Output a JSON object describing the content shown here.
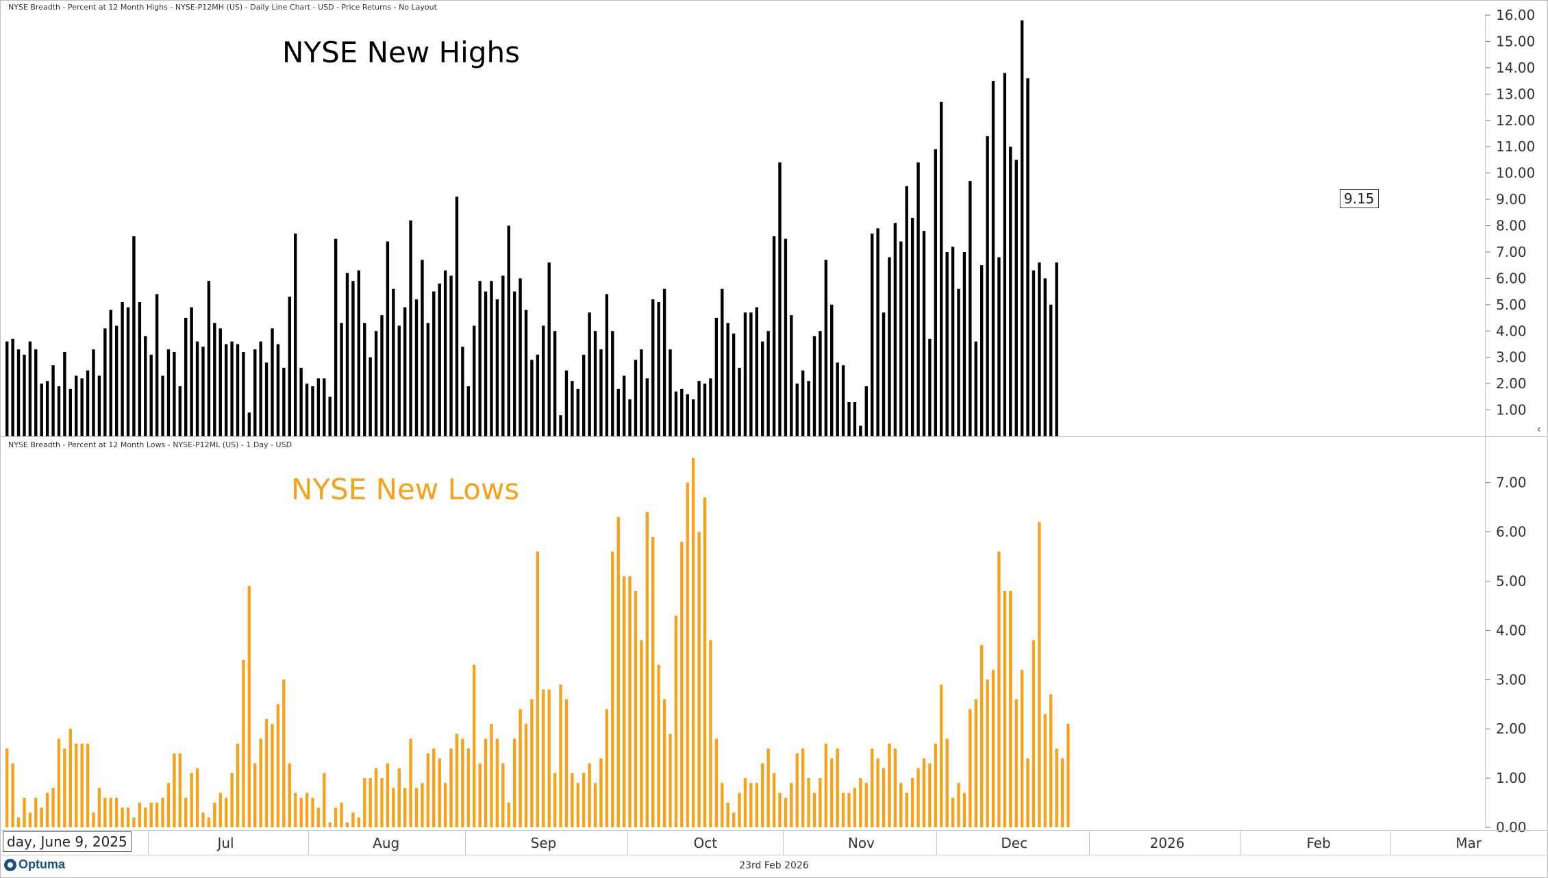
{
  "headers": {
    "top": "NYSE Breadth - Percent at 12 Month Highs - NYSE-P12MH (US) - Daily Line Chart - USD - Price Returns - No Layout",
    "bottom": "NYSE Breadth - Percent at 12 Month Lows - NYSE-P12ML (US) - 1 Day - USD"
  },
  "titles": {
    "highs": "NYSE New Highs",
    "lows": "NYSE New Lows"
  },
  "colors": {
    "highs": "#000000",
    "lows": "#f7a21b"
  },
  "footer": {
    "logo": "Optuma",
    "date": "23rd Feb 2026",
    "start_date": "day, June 9, 2025"
  },
  "price_badge": "9.15",
  "icons": {
    "collapse": "chevron-left-icon",
    "logo": "optuma-logo-icon"
  },
  "chart_data": [
    {
      "type": "bar",
      "name": "NYSE-P12MH",
      "ylim": [
        0,
        16
      ],
      "yticks": [
        "1.00",
        "2.00",
        "3.00",
        "4.00",
        "5.00",
        "6.00",
        "7.00",
        "8.00",
        "9.00",
        "10.00",
        "11.00",
        "12.00",
        "13.00",
        "14.00",
        "15.00",
        "16.00"
      ],
      "values": [
        3.6,
        3.7,
        3.3,
        3.1,
        3.6,
        3.3,
        2.0,
        2.1,
        2.7,
        1.9,
        3.2,
        1.8,
        2.3,
        2.2,
        2.5,
        3.3,
        2.3,
        4.1,
        4.8,
        4.2,
        5.1,
        4.9,
        7.6,
        5.1,
        3.8,
        3.1,
        5.4,
        2.3,
        3.3,
        3.2,
        1.9,
        4.5,
        4.9,
        3.6,
        3.4,
        5.9,
        4.3,
        4.1,
        3.5,
        3.6,
        3.5,
        3.2,
        0.9,
        3.3,
        3.6,
        2.8,
        4.1,
        3.5,
        2.6,
        5.3,
        7.7,
        2.6,
        2.0,
        1.9,
        2.2,
        2.2,
        1.5,
        7.5,
        4.3,
        6.2,
        5.9,
        6.3,
        4.3,
        3.0,
        4.0,
        4.6,
        7.4,
        5.6,
        4.2,
        4.9,
        8.2,
        5.2,
        6.7,
        4.3,
        5.5,
        5.8,
        6.3,
        6.1,
        9.1,
        3.4,
        1.9,
        4.2,
        5.9,
        5.5,
        5.9,
        5.2,
        6.1,
        8.0,
        5.5,
        6.0,
        4.8,
        2.9,
        3.1,
        4.2,
        6.6,
        4.0,
        0.8,
        2.5,
        2.1,
        1.8,
        3.1,
        4.7,
        4.0,
        3.3,
        5.4,
        4.0,
        1.8,
        2.3,
        1.4,
        2.9,
        3.3,
        2.2,
        5.2,
        5.1,
        5.6,
        3.3,
        1.7,
        1.8,
        1.6,
        1.4,
        2.1,
        2.0,
        2.2,
        4.5,
        5.6,
        4.3,
        3.9,
        2.6,
        4.7,
        4.7,
        4.9,
        3.6,
        4.0,
        7.6,
        10.4,
        7.5,
        4.6,
        2.0,
        2.5,
        2.1,
        3.8,
        4.0,
        6.7,
        5.0,
        2.8,
        2.7,
        1.3,
        1.3,
        0.4,
        1.9,
        7.7,
        7.9,
        4.7,
        6.8,
        8.1,
        7.4,
        9.5,
        8.3,
        10.4,
        7.8,
        3.7,
        10.9,
        12.7,
        7.0,
        7.2,
        5.6,
        7.0,
        9.7,
        3.6,
        6.5,
        11.4,
        13.5,
        6.8,
        13.8,
        11.0,
        10.5,
        15.8,
        13.6,
        6.3,
        6.6,
        6.0,
        5.0,
        6.6
      ]
    },
    {
      "type": "bar",
      "name": "NYSE-P12ML",
      "ylim": [
        0,
        7.9
      ],
      "yticks": [
        "0.00",
        "1.00",
        "2.00",
        "3.00",
        "4.00",
        "5.00",
        "6.00",
        "7.00"
      ],
      "values": [
        1.6,
        1.3,
        0.2,
        0.6,
        0.3,
        0.6,
        0.4,
        0.7,
        0.8,
        1.8,
        1.6,
        2.0,
        1.7,
        1.7,
        1.7,
        0.3,
        0.8,
        0.6,
        0.6,
        0.6,
        0.4,
        0.4,
        0.2,
        0.5,
        0.4,
        0.5,
        0.5,
        0.6,
        0.9,
        1.5,
        1.5,
        0.6,
        1.1,
        1.2,
        0.3,
        0.2,
        0.5,
        0.7,
        0.6,
        1.1,
        1.7,
        3.4,
        4.9,
        1.3,
        1.8,
        2.2,
        2.1,
        2.5,
        3.0,
        1.3,
        0.7,
        0.6,
        0.7,
        0.6,
        0.4,
        1.1,
        0.1,
        0.4,
        0.5,
        0.1,
        0.3,
        0.2,
        1.0,
        1.0,
        1.2,
        1.0,
        1.3,
        0.8,
        1.2,
        0.8,
        1.8,
        0.8,
        0.9,
        1.5,
        1.6,
        1.4,
        0.9,
        1.6,
        1.9,
        1.8,
        1.6,
        3.3,
        1.3,
        1.8,
        2.1,
        1.8,
        1.3,
        0.5,
        1.8,
        2.4,
        2.1,
        2.6,
        5.6,
        2.8,
        2.8,
        1.1,
        2.9,
        2.6,
        1.1,
        0.9,
        1.1,
        1.3,
        0.9,
        1.4,
        2.4,
        5.6,
        6.3,
        5.1,
        5.1,
        4.8,
        3.8,
        6.4,
        5.9,
        3.3,
        2.6,
        1.9,
        4.3,
        5.8,
        7.0,
        7.5,
        6.0,
        6.7,
        3.8,
        1.8,
        0.9,
        0.5,
        0.3,
        0.7,
        1.0,
        0.9,
        0.9,
        1.3,
        1.6,
        1.1,
        0.7,
        0.6,
        0.9,
        1.5,
        1.6,
        1.0,
        0.7,
        1.0,
        1.7,
        1.4,
        1.6,
        0.7,
        0.7,
        0.8,
        1.0,
        0.9,
        1.6,
        1.4,
        1.2,
        1.7,
        1.6,
        0.9,
        0.7,
        1.0,
        1.2,
        1.4,
        1.3,
        1.7,
        2.9,
        1.8,
        0.6,
        0.9,
        0.7,
        2.4,
        2.6,
        3.7,
        3.0,
        3.2,
        5.6,
        4.8,
        4.8,
        2.6,
        3.2,
        1.4,
        3.8,
        6.2,
        2.3,
        2.7,
        1.6,
        1.4,
        2.1
      ]
    }
  ],
  "x_axis": {
    "labels": [
      {
        "text": "Jul",
        "pos": 0.152
      },
      {
        "text": "Aug",
        "pos": 0.26
      },
      {
        "text": "Sep",
        "pos": 0.366
      },
      {
        "text": "Oct",
        "pos": 0.475
      },
      {
        "text": "Nov",
        "pos": 0.58
      },
      {
        "text": "Dec",
        "pos": 0.683
      },
      {
        "text": "2026",
        "pos": 0.786
      },
      {
        "text": "Feb",
        "pos": 0.888
      },
      {
        "text": "Mar",
        "pos": 0.989
      }
    ]
  }
}
